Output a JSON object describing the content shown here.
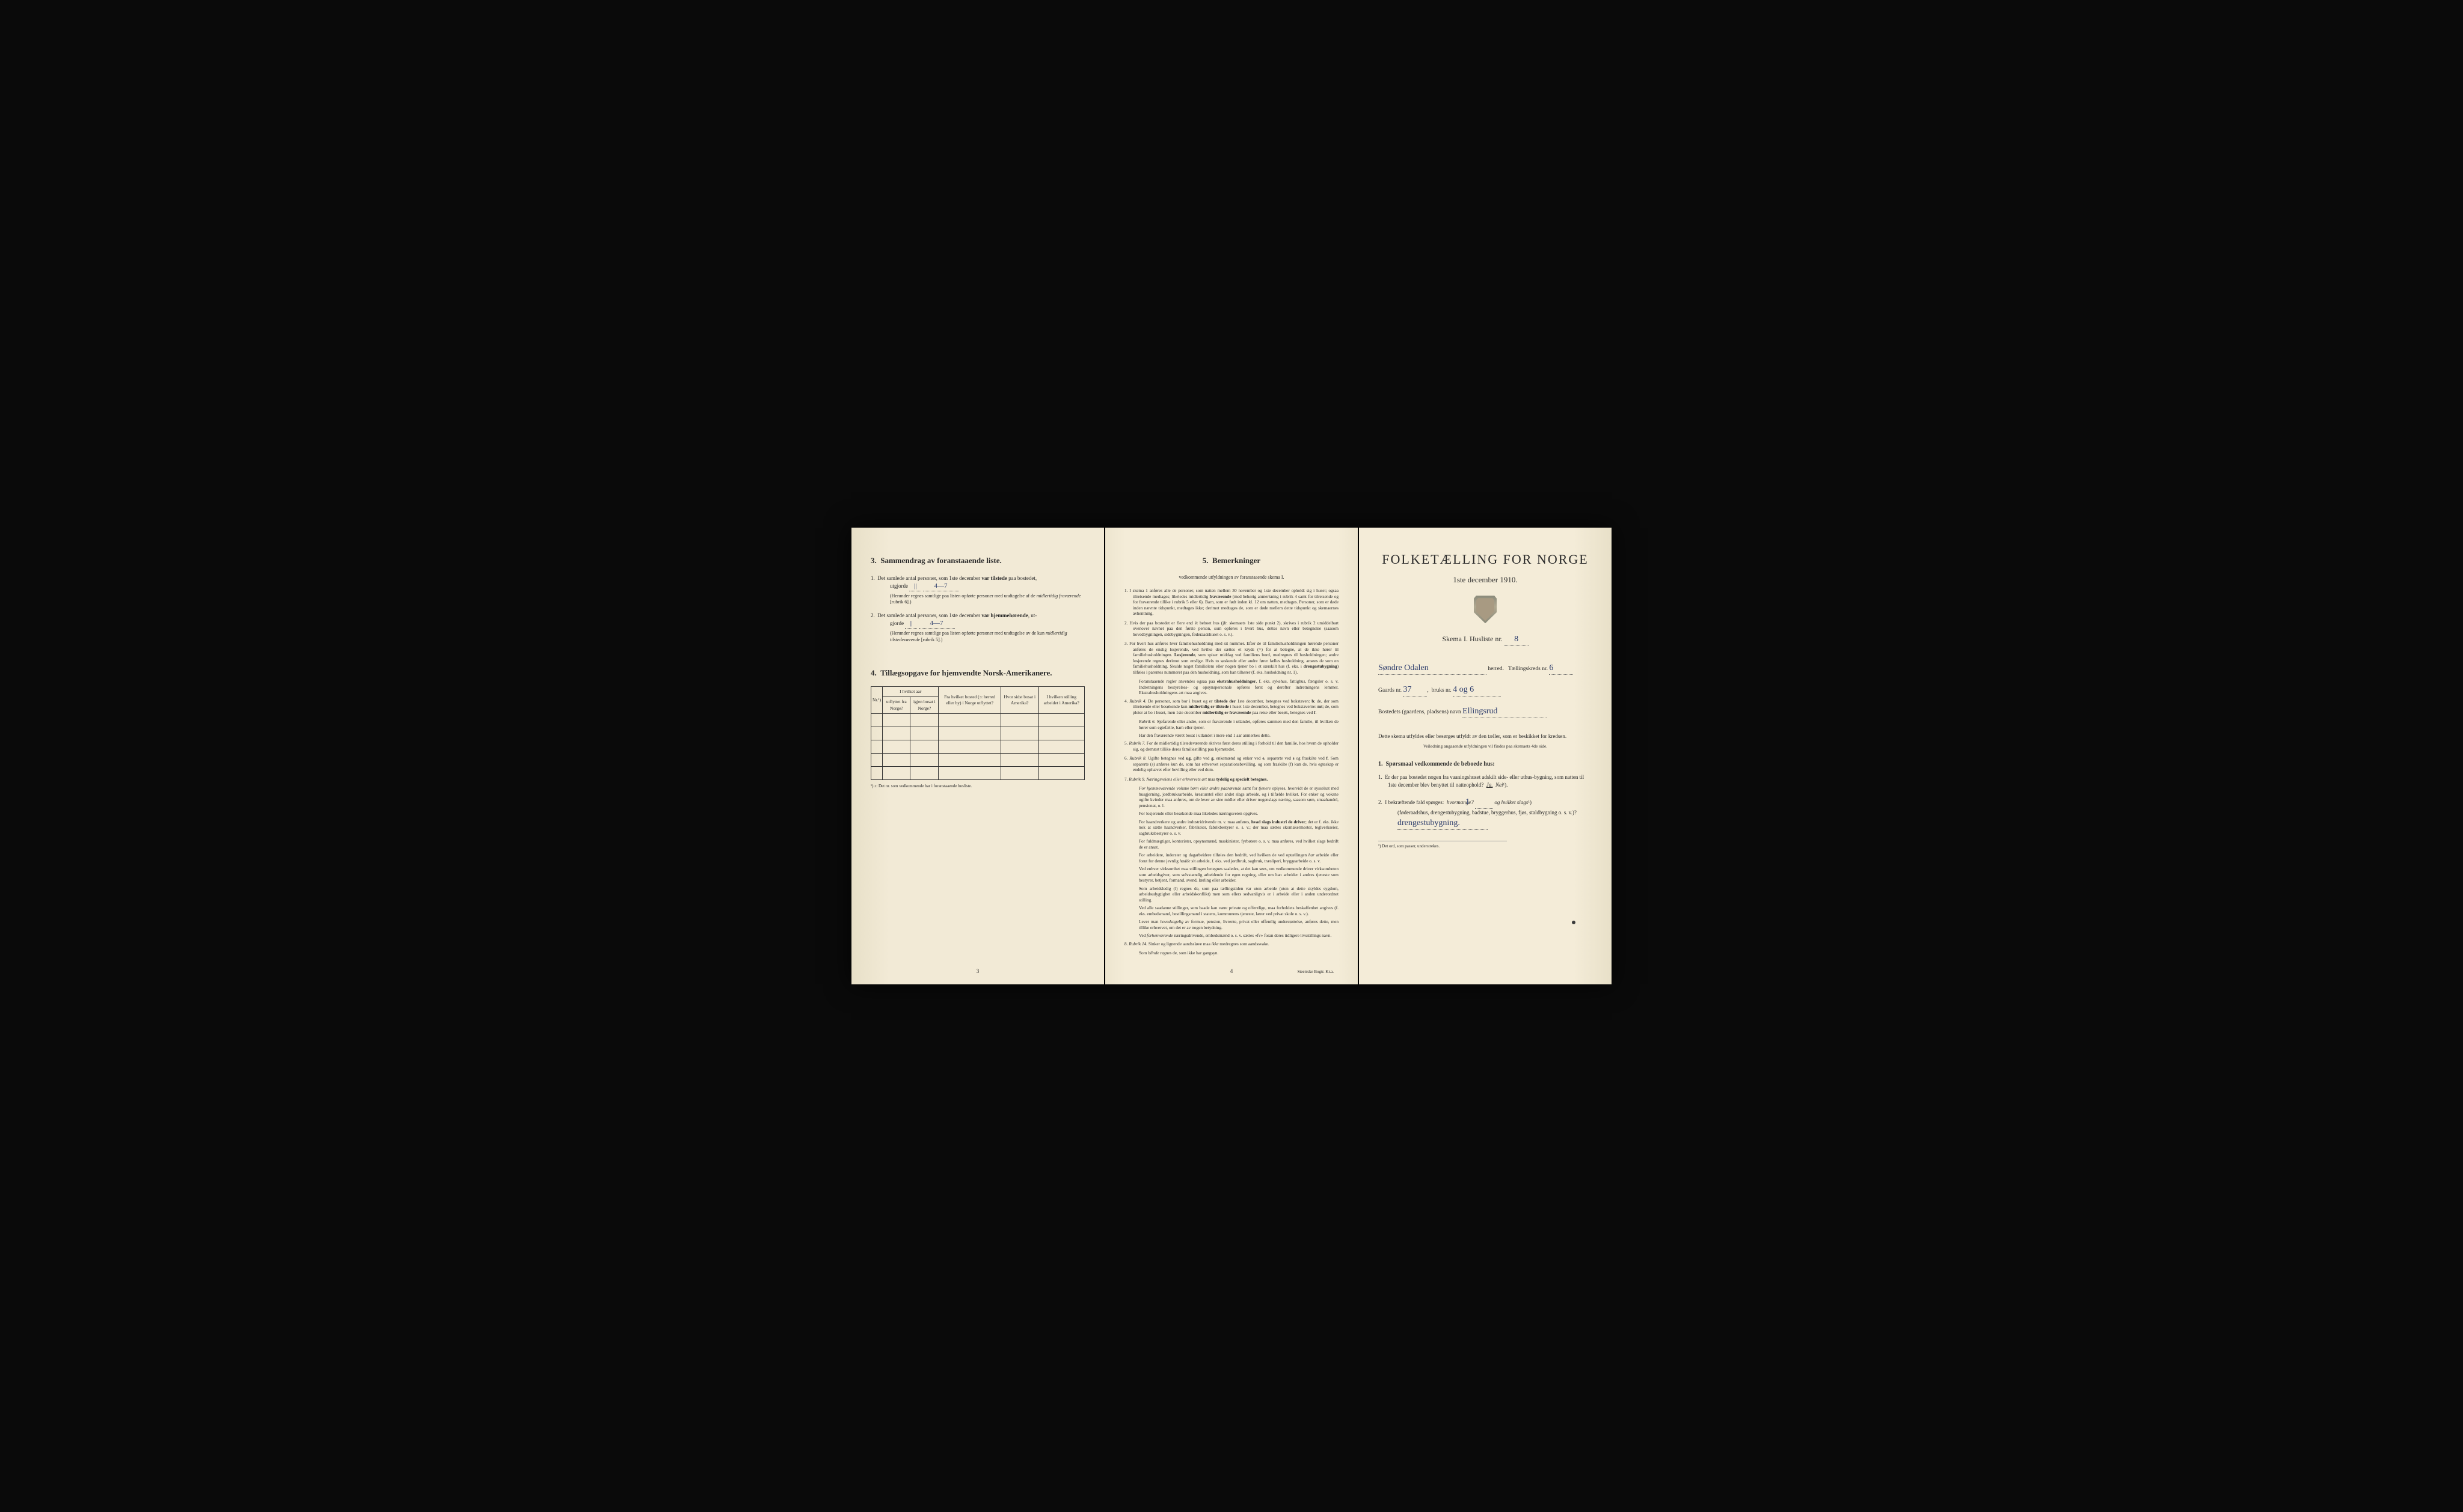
{
  "colors": {
    "paper": "#f2ead6",
    "paper_shadow": "#e8e0c8",
    "ink": "#2a2a2a",
    "handwriting": "#2a3a6a",
    "background": "#0a0a0a"
  },
  "page3": {
    "section3_num": "3.",
    "section3_title": "Sammendrag av foranstaaende liste.",
    "q1_num": "1.",
    "q1_text_a": "Det samlede antal personer, som 1ste december",
    "q1_bold": "var tilstede",
    "q1_text_b": "paa bostedet,",
    "q1_line2a": "utgjorde",
    "q1_tally": "||",
    "q1_value": "4—7",
    "q1_note": "(Herunder regnes samtlige paa listen opførte personer med undtagelse af de",
    "q1_note_em": "midlertidig fraværende",
    "q1_note_end": "[rubrik 6].)",
    "q2_num": "2.",
    "q2_text_a": "Det samlede antal personer, som 1ste december",
    "q2_bold": "var hjemmehørende",
    "q2_text_b": ", ut-",
    "q2_line2a": "gjorde",
    "q2_tally": "||",
    "q2_value": "4—7",
    "q2_note": "(Herunder regnes samtlige paa listen opførte personer med undtagelse av de kun",
    "q2_note_em": "midlertidig tilstedeværende",
    "q2_note_end": "[rubrik 5].)",
    "section4_num": "4.",
    "section4_title": "Tillægsopgave for hjemvendte Norsk-Amerikanere.",
    "table": {
      "headers": {
        "nr": "Nr.¹)",
        "hvilket_aar": "I hvilket aar",
        "utflyttet": "utflyttet fra Norge?",
        "igjen": "igjen bosat i Norge?",
        "fra_bosted": "Fra hvilket bosted (ɔ: herred eller by) i Norge utflyttet?",
        "hvor_sidst": "Hvor sidst bosat i Amerika?",
        "stilling": "I hvilken stilling arbeidet i Amerika?"
      },
      "empty_rows": 5
    },
    "tbl_footnote": "¹) ɔ: Det nr. som vedkommende har i foranstaaende husliste.",
    "page_number": "3"
  },
  "page4": {
    "section5_num": "5.",
    "section5_title": "Bemerkninger",
    "subtitle": "vedkommende utfyldningen av foranstaaende skema I.",
    "items": [
      {
        "n": "1.",
        "text": "I skema 1 anføres alle de personer, som natten mellem 30 november og 1ste december opholdt sig i huset; ogsaa tilreisende medtages; likeledes midlertidig <b>fraværende</b> (med behørig anmerkning i rubrik 4 samt for tilreisende og for fraværende tillike i rubrik 5 eller 6). Barn, som er født inden kl. 12 om natten, medtages. Personer, som er døde inden nævnte tidspunkt, medtages ikke; derimot medtages de, som er døde mellem dette tidspunkt og skemaernes avhentning."
      },
      {
        "n": "2.",
        "text": "Hvis der paa bostedet er flere end ét beboet hus (jfr. skemaets 1ste side punkt 2), skrives i rubrik 2 umiddelbart ovenover navnet paa den første person, som opføres i hvert hus, dettes navn eller betegnelse (saasom hovedbygningen, sidebygningen, føderaadshuset o. s. v.)."
      },
      {
        "n": "3.",
        "text": "For hvert hus anføres hver familiehusholdning med sit nummer. Efter de til familiehusholdningen hørende personer anføres de enslig losjerende, ved hvilke der sættes et kryds (×) for at betegne, at de ikke hører til familiehusholdningen. <b>Losjerende</b>, som spiser middag ved familiens bord, medregnes til husholdningen; andre losjerende regnes derimot som enslige. Hvis to søskende eller andre fører fælles husholdning, ansees de som en familiehusholdning. Skulde noget familielem eller nogen tjener bo i et særskilt hus (f. eks. i <b>drengestubygning</b>) tilføies i parentes nummeret paa den husholdning, som han tilhører (f. eks. husholdning nr. 1).",
        "subs": [
          "Foranstaaende regler anvendes ogsaa paa <b>ekstrahusholdninger</b>, f. eks. sykehus, fattighus, fængsler o. s. v. Indretningens bestyrelses- og opsynspersonale opføres først og derefter indretningens lemmer. Ekstrahusholdningens art maa angives."
        ]
      },
      {
        "n": "4.",
        "text": "<em>Rubrik 4.</em> De personer, som bor i huset og er <b>tilstede der</b> 1ste december, betegnes ved bokstaven: <b>b</b>; de, der som tilreisende eller besøkende kun <b>midlertidig er tilstede</b> i huset 1ste december, betegnes ved bokstaverne: <b>mt</b>; de, som pleier at bo i huset, men 1ste december <b>midlertidig er fraværende</b> paa reise eller besøk, betegnes ved <b>f</b>.",
        "subs": [
          "<em>Rubrik 6.</em> Sjøfarende eller andre, som er fraværende i utlandet, opføres sammen med den familie, til hvilken de hører som egtefælle, barn eller tjener.",
          "Har den fraværende været bosat i utlandet i mere end 1 aar anmerkes dette."
        ]
      },
      {
        "n": "5.",
        "text": "<em>Rubrik 7.</em> For de midlertidig tilstedeværende skrives først deres stilling i forhold til den familie, hos hvem de opholder sig, og dernæst tillike deres familiestilling paa hjemstedet."
      },
      {
        "n": "6.",
        "text": "<em>Rubrik 8.</em> Ugifte betegnes ved <b>ug</b>, gifte ved <b>g</b>, enkemænd og enker ved <b>e</b>, separerte ved <b>s</b> og fraskilte ved <b>f</b>. Som separerte (s) anføres kun de, som har erhvervet separationsbevilling, og som fraskilte (f) kun de, hvis egteskap er endelig ophævet efter bevilling eller ved dom."
      },
      {
        "n": "7.",
        "text": "<em>Rubrik 9.</em> <em>Næringsveiens eller erhvervets art</em> maa <b>tydelig og specielt betegnes.</b>",
        "subs": [
          "<em>For hjemmeværende</em> voksne <em>børn eller andre paarørende</em> samt for <em>tjenere</em> oplyses, hvorvidt de er sysselsat med husgjerning, jordbruksarbeide, kreaturstel eller andet slags arbeide, og i tilfælde hvilket. For enker og voksne ugifte kvinder maa anføres, om de lever av sine midler eller driver nogenslags næring, saasom søm, smaahandel, pensionat, o. l.",
          "For losjerende eller besøkende maa likeledes næringsveien opgives.",
          "For haandverkere og andre industridrivende m. v. maa anføres, <b>hvad slags industri de driver</b>; det er f. eks. ikke nok at sætte haandverker, fabrikeier, fabrikbestyrer o. s. v.; der maa sættes skomakermester, teglverkseier, sagbruksbestyrer o. s. v.",
          "For fuldmægtiger, kontorister, opsynsmænd, maskinister, fyrbøtere o. s. v. maa anføres, ved hvilket slags bedrift de er ansat.",
          "For arbeidere, inderster og dagarbeidere tilføies den bedrift, ved hvilken de ved optællingen <em>har</em> arbeide eller forut for denne jevnlig <em>hadde</em> sit arbeide, f. eks. ved jordbruk, sagbruk, træsliperi, bryggearbeide o. s. v.",
          "Ved enhver virksomhet maa stillingen betegnes saaledes, at det kan sees, om vedkommende driver virksomheten som arbeidsgiver, som selvstændig arbeidende for egen regning, eller om han arbeider i andres tjeneste som bestyrer, betjent, formand, svend, lærling eller arbeider.",
          "Som arbeidsledig (l) regnes de, som paa tællingstiden var uten arbeide (uten at dette skyldes sygdom, arbeidsudygtighet eller arbeidskonflikt) men som ellers sedvanligvis er i arbeide eller i anden underordnet stilling.",
          "Ved alle saadanne stillinger, som baade kan være private og offentlige, maa forholdets beskaffenhet angives (f. eks. embedsmand, bestillingsmand i statens, kommunens tjeneste, lærer ved privat skole o. s. v.).",
          "Lever man <em>hovedsagelig</em> av formue, pension, livrente, privat eller offentlig understøttelse, anføres dette, men tillike erhvervet, om det er av nogen betydning.",
          "Ved <em>forhenværende</em> næringsdrivende, embedsmænd o. s. v. sættes «fv» foran deres tidligere livsstillings navn."
        ]
      },
      {
        "n": "8.",
        "text": "<em>Rubrik 14.</em> Sinker og lignende aandssløve maa <em>ikke</em> medregnes som aandssvake.",
        "subs": [
          "Som <em>blinde</em> regnes de, som ikke har gangsyn."
        ]
      }
    ],
    "page_number": "4",
    "printer": "Steen'ske Bogtr. Kr.a."
  },
  "page_right": {
    "title": "FOLKETÆLLING FOR NORGE",
    "date": "1ste december 1910.",
    "skema_label": "Skema I.  Husliste nr.",
    "husliste_nr": "8",
    "herred_value": "Søndre Odalen",
    "herred_label": "herred.",
    "kreds_label": "Tællingskreds nr.",
    "kreds_value": "6",
    "gaards_label": "Gaards nr.",
    "gaards_value": "37",
    "bruks_label": "bruks nr.",
    "bruks_value": "4 og 6",
    "bosted_label": "Bostedets (gaardens, pladsens) navn",
    "bosted_value": "Ellingsrud",
    "instruct": "Dette skema utfyldes eller besørges utfyldt av den tæller, som er beskikket for kredsen.",
    "instruct_sub": "Veiledning angaaende utfyldningen vil findes paa skemaets 4de side.",
    "q_heading_num": "1.",
    "q_heading": "Spørsmaal vedkommende de beboede hus:",
    "q1_num": "1.",
    "q1_text": "Er der paa bostedet nogen fra vaaningshuset adskilt side- eller uthus-bygning, som natten til 1ste december blev benyttet til natteophold?",
    "q1_ja": "Ja.",
    "q1_nei": "Nei",
    "q1_sup": "¹).",
    "q2_num": "2.",
    "q2_text_a": "I bekræftende fald spørges:",
    "q2_hvormange": "hvormange?",
    "q2_hvormange_val": "1",
    "q2_hvilket": "og hvilket slags",
    "q2_sup": "¹)",
    "q2_paren": "(føderaadshus, drengestubygning, badstue, bryggerhus, fjøs, staldbygning o. s. v.)?",
    "q2_answer": "drengestubygning.",
    "footnote": "¹) Det ord, som passer, understrekes."
  }
}
